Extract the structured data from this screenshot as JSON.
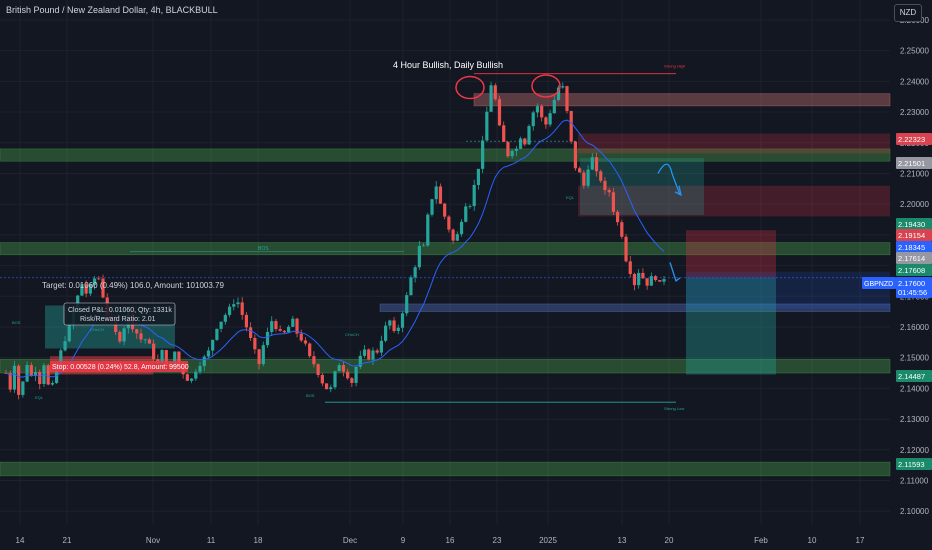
{
  "header": {
    "symbol_title": "British Pound / New Zealand Dollar, 4h, BLACKBULL",
    "currency_badge": "NZD"
  },
  "chart_data": {
    "type": "candlestick",
    "title": "4 Hour Bullish, Daily Bullish",
    "symbol": "GBPNZD",
    "timeframe": "4h",
    "ylim": [
      2.0955,
      2.2665
    ],
    "price_ticks": [
      "2.26000",
      "2.25000",
      "2.24000",
      "2.23000",
      "2.22000",
      "2.21000",
      "2.20000",
      "2.19000",
      "2.18000",
      "2.17000",
      "2.16000",
      "2.15000",
      "2.14000",
      "2.13000",
      "2.12000",
      "2.11000",
      "2.10000"
    ],
    "time_ticks": [
      "14",
      "21",
      "Nov",
      "11",
      "18",
      "Dec",
      "9",
      "16",
      "23",
      "2025",
      "13",
      "20",
      "Feb",
      "10",
      "17"
    ],
    "price_path": [
      [
        2.145,
        2.14,
        2.148,
        2.138,
        2.142,
        2.148,
        2.144,
        2.146,
        2.142,
        2.148,
        2.141
      ],
      [
        2.141,
        2.147,
        2.152,
        2.156,
        2.16,
        2.166,
        2.17,
        2.174,
        2.171,
        2.173,
        2.1758
      ],
      [
        2.1758,
        2.17,
        2.164,
        2.162,
        2.158,
        2.156,
        2.16,
        2.164,
        2.16,
        2.158,
        2.156
      ],
      [
        2.156,
        2.154,
        2.15,
        2.148,
        2.152,
        2.148,
        2.146,
        2.152,
        2.148,
        2.145,
        2.143
      ],
      [
        2.143,
        2.146,
        2.148,
        2.15,
        2.152,
        2.156,
        2.16,
        2.162,
        2.164,
        2.166,
        2.168
      ],
      [
        2.168,
        2.164,
        2.16,
        2.156,
        2.152,
        2.148,
        2.154,
        2.158,
        2.162,
        2.16,
        2.158
      ],
      [
        2.158,
        2.16,
        2.162,
        2.158,
        2.156,
        2.154,
        2.15,
        2.148,
        2.145,
        2.142,
        2.14
      ],
      [
        2.14,
        2.145,
        2.148,
        2.146,
        2.144,
        2.142,
        2.147,
        2.15,
        2.152,
        2.15,
        2.152
      ],
      [
        2.152,
        2.156,
        2.16,
        2.162,
        2.158,
        2.16,
        2.165,
        2.17,
        2.176,
        2.18,
        2.186
      ],
      [
        2.186,
        2.196,
        2.202,
        2.206,
        2.2,
        2.196,
        2.192,
        2.188,
        2.19,
        2.195,
        2.2
      ],
      [
        2.2,
        2.206,
        2.212,
        2.22,
        2.23,
        2.239,
        2.234,
        2.225,
        2.22,
        2.216,
        2.218
      ],
      [
        2.218,
        2.222,
        2.22,
        2.226,
        2.23,
        2.232,
        2.228,
        2.226,
        2.23,
        2.234,
        2.238
      ],
      [
        2.238,
        2.23,
        2.22,
        2.212,
        2.21,
        2.206,
        2.212,
        2.215,
        2.21,
        2.208,
        2.204
      ],
      [
        2.204,
        2.198,
        2.194,
        2.19,
        2.182,
        2.178,
        2.174,
        2.178,
        2.176,
        2.174,
        2.176
      ],
      [
        2.176,
        2.174,
        2.176
      ]
    ],
    "horizontal_zones": [
      {
        "name": "supply-top",
        "y": [
          2.232,
          2.236
        ],
        "color": "#e07d7d"
      },
      {
        "name": "demand-upper",
        "y": [
          2.214,
          2.218
        ],
        "color": "#4caf50"
      },
      {
        "name": "demand-mid",
        "y": [
          2.1835,
          2.1875
        ],
        "color": "#4caf50"
      },
      {
        "name": "demand-lower",
        "y": [
          2.145,
          2.1495
        ],
        "color": "#4caf50"
      },
      {
        "name": "demand-bottom",
        "y": [
          2.1115,
          2.116
        ],
        "color": "#4caf50"
      },
      {
        "name": "blue-zone",
        "y": [
          2.165,
          2.1675
        ],
        "color": "#5b7bd5"
      }
    ],
    "price_labels": [
      {
        "value": "2.22323",
        "color": "#d9434f"
      },
      {
        "value": "2.21501",
        "color": "#9598a1"
      },
      {
        "value": "2.19430",
        "color": "#1b8a6b"
      },
      {
        "value": "2.19154",
        "color": "#d9434f"
      },
      {
        "value": "2.18345",
        "color": "#2962ff"
      },
      {
        "value": "2.17614",
        "color": "#9598a1"
      },
      {
        "value": "2.17608",
        "color": "#1b8a6b"
      },
      {
        "value": "2.17600",
        "color": "#2962ff"
      },
      {
        "value": "01:45:56",
        "color": "#2962ff"
      },
      {
        "value": "2.14487",
        "color": "#1b8a6b"
      },
      {
        "value": "2.11593",
        "color": "#1b8a6b"
      }
    ],
    "symbol_tag": "GBPNZD",
    "annotations": {
      "target_label": "Target: 0.01060 (0.49%) 106.0, Amount: 101003.79",
      "stop_label": "Stop: 0.00528 (0.24%) 52.8, Amount: 99500",
      "closed_pl": "Closed P&L: 0.01060, Qty: 1331k",
      "risk_reward": "Risk/Reward Ratio: 2.01",
      "strong_high": "Strong High",
      "strong_low": "Strong Low",
      "bos": "BOS",
      "eql": "EQL",
      "choch": "CHoCH"
    },
    "colors": {
      "bull": "#26a69a",
      "bear": "#ef5350",
      "ema": "#2962ff",
      "demand_zone": "#4caf50",
      "supply_zone": "#f23645",
      "projection": "#2196f3"
    }
  }
}
